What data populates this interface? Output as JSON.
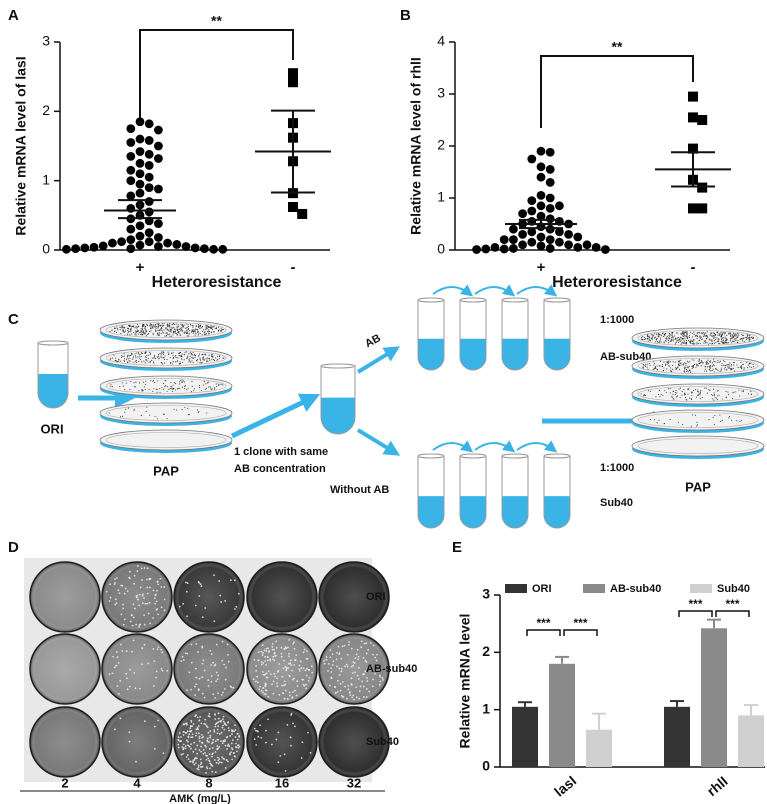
{
  "panel_labels": [
    "A",
    "B",
    "C",
    "D",
    "E"
  ],
  "chart_data": [
    {
      "type": "dot",
      "ylabel": "Relative mRNA level of lasI",
      "xlabel": "Heteroresistance",
      "categories": [
        "+",
        "-"
      ],
      "ylim": [
        0,
        3
      ],
      "yticks": [
        0,
        1,
        2,
        3
      ],
      "color": "#000000",
      "annotation": "**",
      "groups": [
        {
          "marker": "circle",
          "mean": 0.57,
          "error_low": 0.46,
          "error_high": 0.72,
          "values": [
            1.85,
            1.82,
            1.75,
            1.73,
            1.6,
            1.58,
            1.55,
            1.5,
            1.42,
            1.38,
            1.35,
            1.32,
            1.25,
            1.22,
            1.15,
            1.1,
            1.05,
            1.0,
            0.95,
            0.9,
            0.88,
            0.82,
            0.78,
            0.7,
            0.65,
            0.6,
            0.55,
            0.5,
            0.45,
            0.42,
            0.38,
            0.35,
            0.3,
            0.25,
            0.2,
            0.18,
            0.15,
            0.12,
            0.12,
            0.1,
            0.1,
            0.08,
            0.07,
            0.06,
            0.05,
            0.05,
            0.04,
            0.03,
            0.03,
            0.02,
            0.02,
            0.02,
            0.01,
            0.01,
            0.01
          ]
        },
        {
          "marker": "square",
          "mean": 1.42,
          "error_low": 0.83,
          "error_high": 2.01,
          "values": [
            2.55,
            2.42,
            1.83,
            1.62,
            1.28,
            0.82,
            0.62,
            0.52
          ]
        }
      ]
    },
    {
      "type": "dot",
      "ylabel": "Relative mRNA level of rhlI",
      "xlabel": "Heteroresistance",
      "categories": [
        "+",
        "-"
      ],
      "ylim": [
        0,
        4
      ],
      "yticks": [
        0,
        1,
        2,
        3,
        4
      ],
      "color": "#000000",
      "annotation": "**",
      "groups": [
        {
          "marker": "circle",
          "mean": 0.5,
          "error_low": 0.42,
          "error_high": 0.58,
          "values": [
            1.9,
            1.88,
            1.75,
            1.6,
            1.55,
            1.4,
            1.3,
            1.05,
            1.0,
            0.95,
            0.85,
            0.85,
            0.8,
            0.75,
            0.7,
            0.65,
            0.6,
            0.55,
            0.55,
            0.5,
            0.5,
            0.45,
            0.4,
            0.4,
            0.35,
            0.35,
            0.3,
            0.3,
            0.25,
            0.25,
            0.2,
            0.2,
            0.2,
            0.15,
            0.15,
            0.1,
            0.1,
            0.1,
            0.08,
            0.05,
            0.05,
            0.05,
            0.03,
            0.03,
            0.02,
            0.02,
            0.01,
            0.01
          ]
        },
        {
          "marker": "square",
          "mean": 1.55,
          "error_low": 1.22,
          "error_high": 1.88,
          "values": [
            2.95,
            2.55,
            2.5,
            1.95,
            1.35,
            1.2,
            0.8,
            0.8
          ]
        }
      ]
    },
    {
      "type": "bar",
      "ylabel": "Relative mRNA level",
      "categories": [
        "lasI",
        "rhlI"
      ],
      "ylim": [
        0,
        3
      ],
      "yticks": [
        0,
        1,
        2,
        3
      ],
      "significance": [
        "***",
        "***",
        "***",
        "***"
      ],
      "series": [
        {
          "name": "ORI",
          "color": "#333333",
          "values": [
            1.05,
            1.05
          ],
          "errors": [
            0.08,
            0.1
          ]
        },
        {
          "name": "AB-sub40",
          "color": "#8a8a8a",
          "values": [
            1.8,
            2.42
          ],
          "errors": [
            0.12,
            0.15
          ]
        },
        {
          "name": "Sub40",
          "color": "#d0d0d0",
          "values": [
            0.65,
            0.9
          ],
          "errors": [
            0.28,
            0.18
          ]
        }
      ]
    }
  ],
  "diagram": {
    "start": "ORI",
    "pap_left": "PAP",
    "clone_line1": "1 clone with same",
    "clone_line2": "AB concentration",
    "branch_ab": "AB",
    "branch_without": "Without AB",
    "top_ratio": "1:1000",
    "top_name": "AB-sub40",
    "bottom_ratio": "1:1000",
    "bottom_name": "Sub40",
    "pap_right": "PAP"
  },
  "plates": {
    "rows": [
      "ORI",
      "AB-sub40",
      "Sub40"
    ],
    "columns": [
      "2",
      "4",
      "8",
      "16",
      "32"
    ],
    "axis_label": "AMK (mg/L)"
  }
}
